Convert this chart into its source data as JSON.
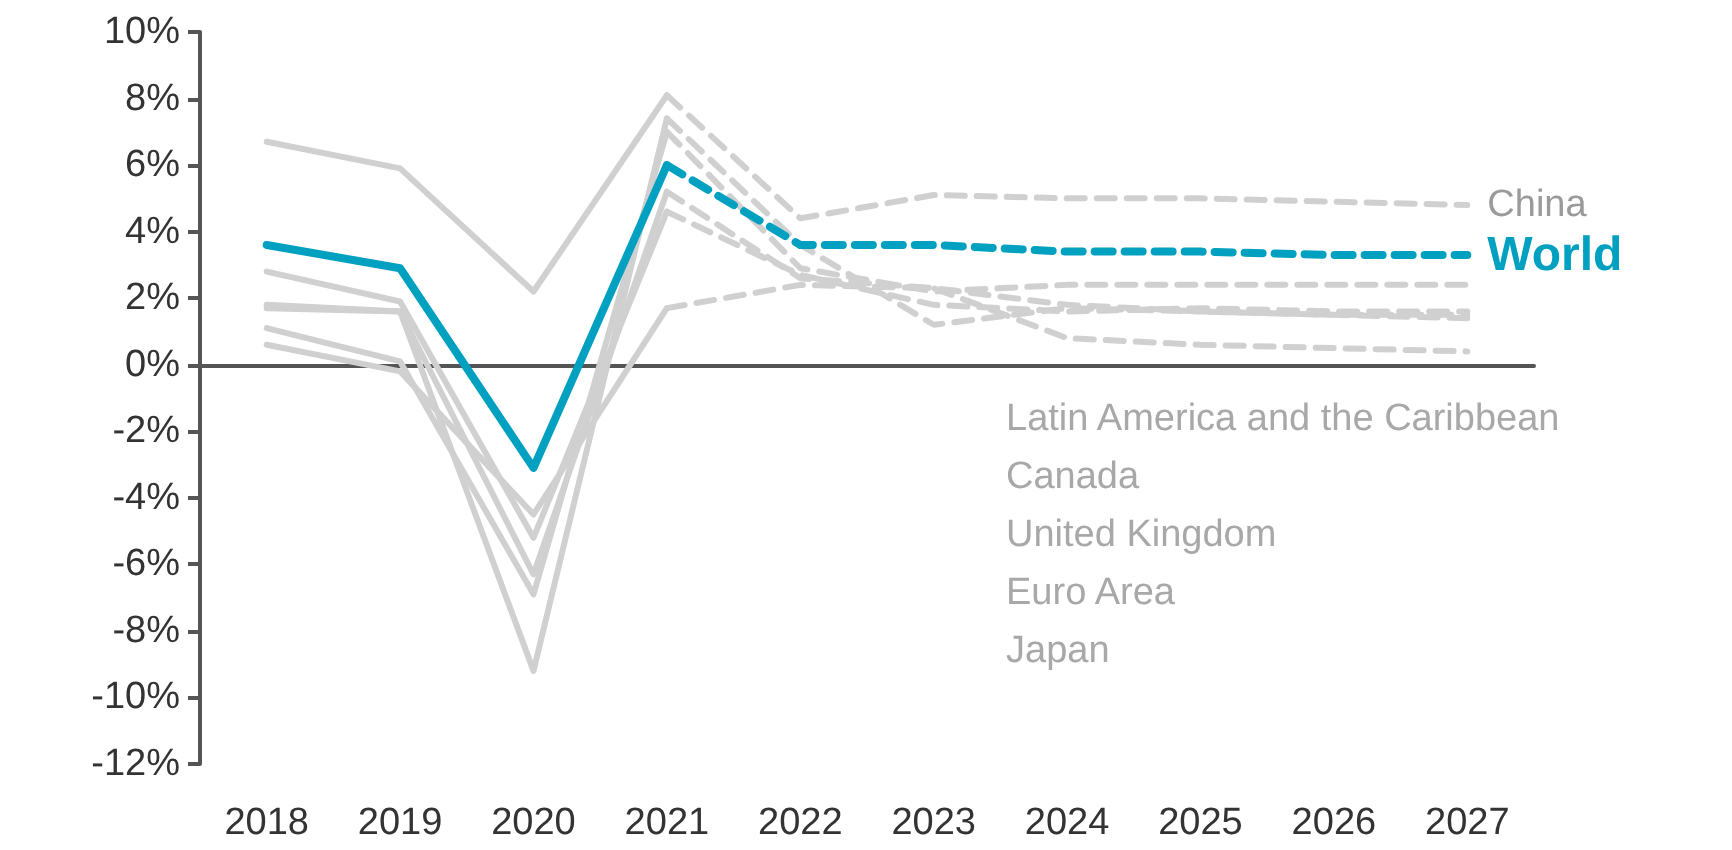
{
  "chart_data": {
    "type": "line",
    "categories": [
      "2018",
      "2019",
      "2020",
      "2021",
      "2022",
      "2023",
      "2024",
      "2025",
      "2026",
      "2027"
    ],
    "ylim": [
      -12,
      10
    ],
    "yticks": [
      {
        "value": -12,
        "label": "-12%"
      },
      {
        "value": -10,
        "label": "-10%"
      },
      {
        "value": -8,
        "label": "-8%"
      },
      {
        "value": -6,
        "label": "-6%"
      },
      {
        "value": -4,
        "label": "-4%"
      },
      {
        "value": -2,
        "label": "-2%"
      },
      {
        "value": 0,
        "label": "0%"
      },
      {
        "value": 2,
        "label": "2%"
      },
      {
        "value": 4,
        "label": "4%"
      },
      {
        "value": 6,
        "label": "6%"
      },
      {
        "value": 8,
        "label": "8%"
      },
      {
        "value": 10,
        "label": "10%"
      }
    ],
    "legend": false,
    "marker": "none",
    "annotations": [
      "Latin America and the Caribbean",
      "Canada",
      "United Kingdom",
      "Euro Area",
      "Japan"
    ],
    "series": [
      {
        "color": "#d0d0d0",
        "line_style": "solid",
        "values": [
          1.1,
          0.1,
          -6.9,
          7.0,
          null,
          null,
          null,
          null,
          null,
          null
        ]
      },
      {
        "color": "#d0d0d0",
        "line_style": "dashed",
        "values": [
          null,
          null,
          null,
          7.0,
          2.9,
          2.2,
          2.4,
          2.4,
          2.4,
          2.4
        ]
      },
      {
        "color": "#d0d0d0",
        "line_style": "solid",
        "values": [
          2.8,
          1.9,
          -5.2,
          4.6,
          null,
          null,
          null,
          null,
          null,
          null
        ]
      },
      {
        "color": "#d0d0d0",
        "line_style": "dashed",
        "values": [
          null,
          null,
          null,
          4.6,
          2.7,
          1.8,
          1.6,
          1.7,
          1.6,
          1.6
        ]
      },
      {
        "color": "#d0d0d0",
        "line_style": "solid",
        "values": [
          1.7,
          1.6,
          -9.2,
          7.4,
          null,
          null,
          null,
          null,
          null,
          null
        ]
      },
      {
        "color": "#d0d0d0",
        "line_style": "dashed",
        "values": [
          null,
          null,
          null,
          7.4,
          3.6,
          1.2,
          1.7,
          1.6,
          1.5,
          1.5
        ]
      },
      {
        "color": "#d0d0d0",
        "line_style": "solid",
        "values": [
          1.8,
          1.6,
          -6.3,
          5.2,
          null,
          null,
          null,
          null,
          null,
          null
        ]
      },
      {
        "color": "#d0d0d0",
        "line_style": "dashed",
        "values": [
          null,
          null,
          null,
          5.2,
          2.6,
          2.3,
          1.8,
          1.6,
          1.5,
          1.4
        ]
      },
      {
        "color": "#d0d0d0",
        "line_style": "solid",
        "values": [
          0.6,
          -0.2,
          -4.5,
          1.7,
          null,
          null,
          null,
          null,
          null,
          null
        ]
      },
      {
        "color": "#d0d0d0",
        "line_style": "dashed",
        "values": [
          null,
          null,
          null,
          1.7,
          2.4,
          2.3,
          0.8,
          0.6,
          0.5,
          0.4
        ]
      },
      {
        "color": "#d0d0d0",
        "line_style": "solid",
        "values": [
          6.7,
          5.9,
          2.2,
          8.1,
          null,
          null,
          null,
          null,
          null,
          null
        ]
      },
      {
        "name": "China",
        "color": "#d0d0d0",
        "line_style": "dashed",
        "values": [
          null,
          null,
          null,
          8.1,
          4.4,
          5.1,
          5.0,
          5.0,
          4.9,
          4.8
        ]
      },
      {
        "color": "#00a0c0",
        "line_style": "solid",
        "values": [
          3.6,
          2.9,
          -3.1,
          6.0,
          null,
          null,
          null,
          null,
          null,
          null
        ]
      },
      {
        "name": "World",
        "color": "#00a0c0",
        "line_style": "dashed",
        "values": [
          null,
          null,
          null,
          6.0,
          3.6,
          3.6,
          3.4,
          3.4,
          3.3,
          3.3
        ]
      }
    ]
  }
}
